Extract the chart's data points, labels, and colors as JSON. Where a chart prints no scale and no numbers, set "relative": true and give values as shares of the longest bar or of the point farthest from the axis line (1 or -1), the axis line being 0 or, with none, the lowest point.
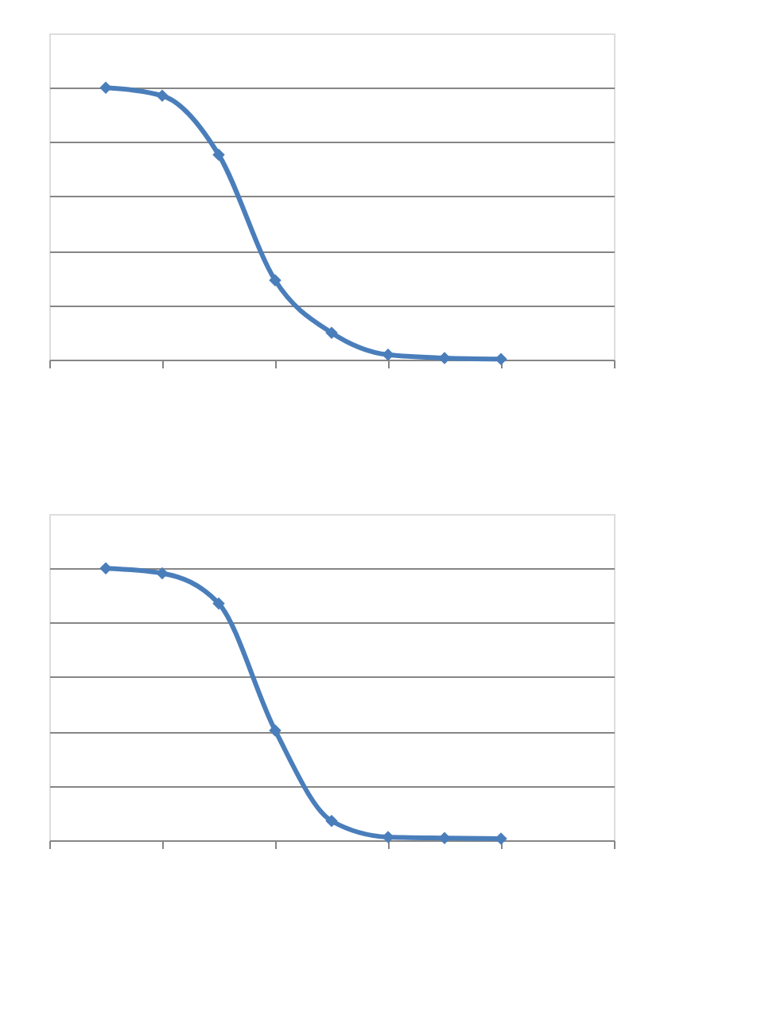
{
  "chart_data": [
    {
      "type": "line",
      "relative": true,
      "categories": [
        null,
        null,
        null,
        null,
        null,
        null,
        null,
        null
      ],
      "grid": "y",
      "marker": "diamond",
      "tick_labels": false,
      "series": [
        {
          "color": "#4a7ebb",
          "values": [
            1,
            0.971,
            0.754,
            0.292,
            0.099,
            0.018,
            0.006,
            0.002
          ]
        }
      ]
    },
    {
      "type": "line",
      "relative": true,
      "categories": [
        null,
        null,
        null,
        null,
        null,
        null,
        null,
        null
      ],
      "grid": "y",
      "marker": "diamond",
      "tick_labels": false,
      "series": [
        {
          "color": "#4a7ebb",
          "values": [
            1,
            0.982,
            0.871,
            0.404,
            0.071,
            0.012,
            0.008,
            0.006
          ]
        }
      ]
    }
  ]
}
